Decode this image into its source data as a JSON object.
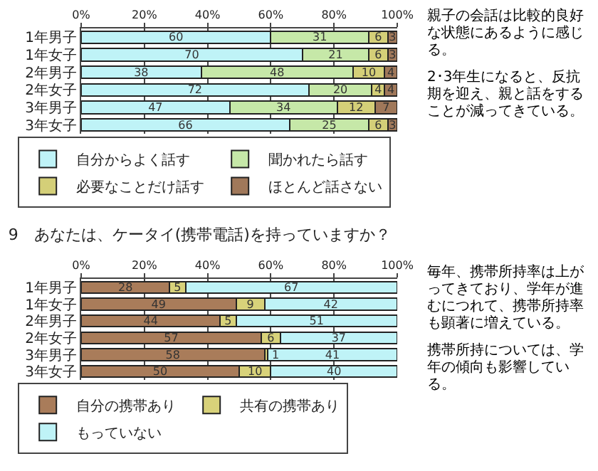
{
  "chart_data": [
    {
      "type": "bar",
      "orientation": "horizontal",
      "stacked": true,
      "data_labels": true,
      "legend": "bottom",
      "grid": "x",
      "categories": [
        "1年男子",
        "1年女子",
        "2年男子",
        "2年女子",
        "3年男子",
        "3年女子"
      ],
      "xlim": [
        0,
        100
      ],
      "xticks": [
        {
          "value": 0,
          "label": "0%"
        },
        {
          "value": 20,
          "label": "20%"
        },
        {
          "value": 40,
          "label": "40%"
        },
        {
          "value": 60,
          "label": "60%"
        },
        {
          "value": 80,
          "label": "80%"
        },
        {
          "value": 100,
          "label": "100%"
        }
      ],
      "series": [
        {
          "name": "自分からよく話す",
          "color": "#bff3f7",
          "values": [
            60,
            70,
            38,
            72,
            47,
            66
          ]
        },
        {
          "name": "聞かれたら話す",
          "color": "#c6e8a8",
          "values": [
            31,
            21,
            48,
            20,
            34,
            25
          ]
        },
        {
          "name": "必要なことだけ話す",
          "color": "#d4cf78",
          "values": [
            6,
            6,
            10,
            4,
            12,
            6
          ]
        },
        {
          "name": "ほとんど話さない",
          "color": "#a0785a",
          "values": [
            3,
            3,
            4,
            4,
            7,
            3
          ]
        }
      ],
      "annotations": [
        "親子の会話は比較的良好な状態にあるように感じる。",
        "2･3年生になると、反抗期を迎え、親と話をすることが減ってきている。"
      ]
    },
    {
      "type": "bar",
      "orientation": "horizontal",
      "stacked": true,
      "data_labels": true,
      "legend": "bottom",
      "grid": "x",
      "title": "9　あなたは、ケータイ(携帯電話)を持っていますか？",
      "categories": [
        "1年男子",
        "1年女子",
        "2年男子",
        "2年女子",
        "3年男子",
        "3年女子"
      ],
      "xlim": [
        0,
        100
      ],
      "xticks": [
        {
          "value": 0,
          "label": "0%"
        },
        {
          "value": 20,
          "label": "20%"
        },
        {
          "value": 40,
          "label": "40%"
        },
        {
          "value": 60,
          "label": "60%"
        },
        {
          "value": 80,
          "label": "80%"
        },
        {
          "value": 100,
          "label": "100%"
        }
      ],
      "series": [
        {
          "name": "自分の携帯あり",
          "color": "#a97c5a",
          "values": [
            28,
            49,
            44,
            57,
            58,
            50
          ]
        },
        {
          "name": "共有の携帯あり",
          "color": "#d8d27a",
          "values": [
            5,
            9,
            5,
            6,
            1,
            10
          ]
        },
        {
          "name": "もっていない",
          "color": "#bff3f7",
          "values": [
            67,
            42,
            51,
            37,
            41,
            40
          ]
        }
      ],
      "annotations": [
        "毎年、携帯所持率は上がってきており、学年が進むにつれて、携帯所持率も顕著に増えている。",
        "携帯所持については、学年の傾向も影響している。"
      ]
    }
  ]
}
